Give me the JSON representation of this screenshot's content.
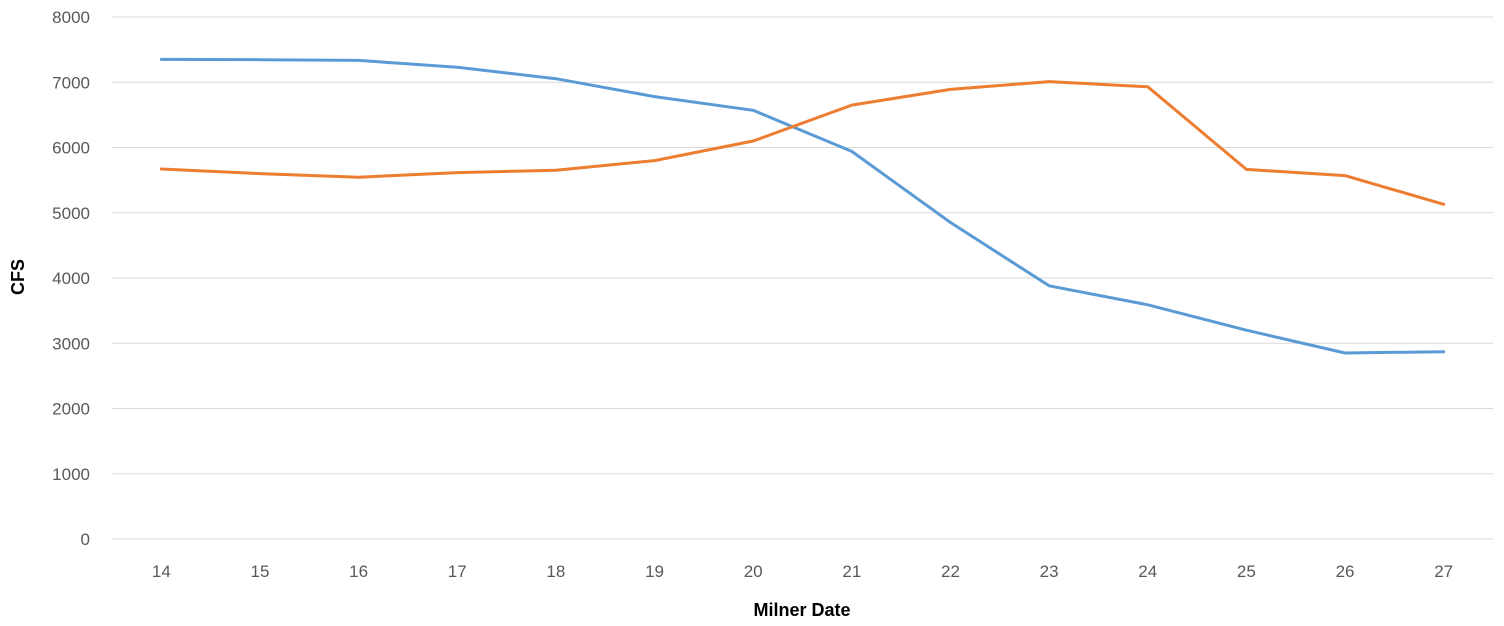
{
  "chart_data": {
    "type": "line",
    "title": "",
    "xlabel": "Milner Date",
    "ylabel": "CFS",
    "categories": [
      "14",
      "15",
      "16",
      "17",
      "18",
      "19",
      "20",
      "21",
      "22",
      "23",
      "24",
      "25",
      "26",
      "27"
    ],
    "ylim": [
      0,
      8000
    ],
    "yticks": [
      0,
      1000,
      2000,
      3000,
      4000,
      5000,
      6000,
      7000,
      8000
    ],
    "grid": true,
    "legend": "none",
    "series": [
      {
        "color": "#5b9bd5",
        "values": [
          7350,
          7345,
          7335,
          7230,
          7055,
          6780,
          6570,
          5940,
          4850,
          3880,
          3590,
          3200,
          2850,
          2870
        ]
      },
      {
        "color": "#ed7d31",
        "values": [
          5670,
          5600,
          5545,
          5615,
          5650,
          5800,
          6100,
          6650,
          6890,
          7010,
          6930,
          5665,
          5570,
          5130
        ]
      }
    ]
  }
}
